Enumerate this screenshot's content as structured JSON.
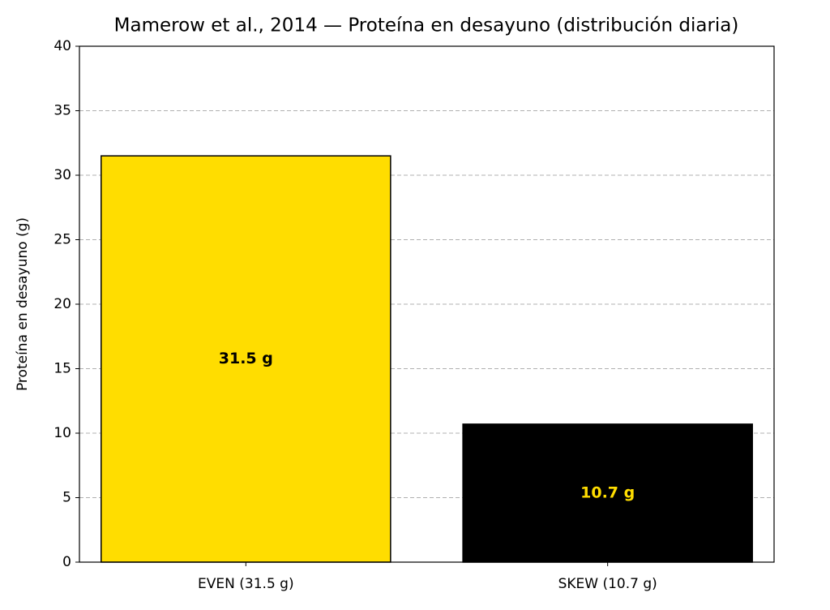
{
  "chart_data": {
    "type": "bar",
    "title": "Mamerow et al., 2014 — Proteína en desayuno (distribución diaria)",
    "y_label": "Proteína en desayuno (g)",
    "categories": [
      "EVEN (31.5 g)",
      "SKEW (10.7 g)"
    ],
    "values": [
      31.5,
      10.7
    ],
    "value_labels": [
      "31.5 g",
      "10.7 g"
    ],
    "colors": [
      "#ffdd00",
      "#000000"
    ],
    "label_colors": [
      "#000000",
      "#ffdd00"
    ],
    "ylim": [
      0,
      40
    ],
    "yticks": [
      0,
      5,
      10,
      15,
      20,
      25,
      30,
      35,
      40
    ],
    "grid": true
  }
}
